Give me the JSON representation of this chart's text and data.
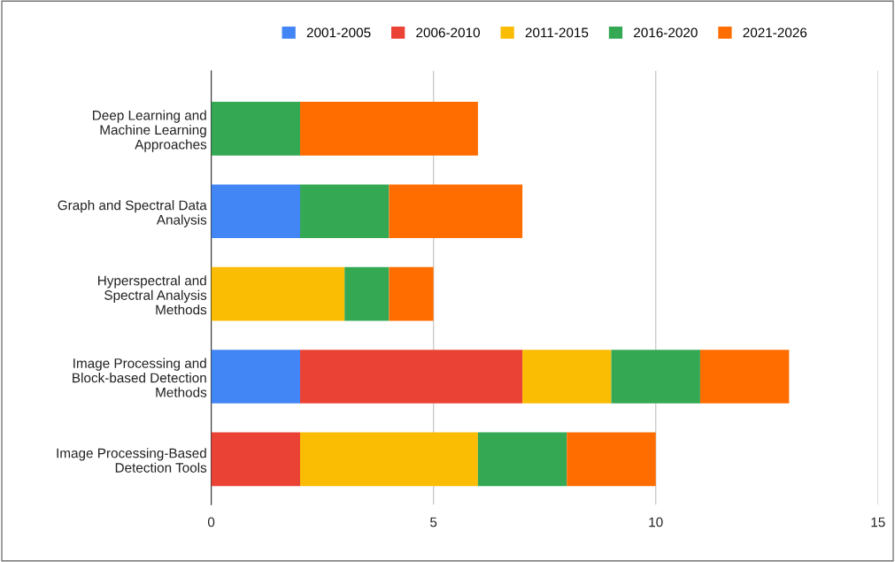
{
  "chart_data": {
    "type": "bar",
    "orientation": "horizontal",
    "stacked": true,
    "categories": [
      "Deep Learning and Machine Learning Approaches",
      "Graph and Spectral Data Analysis",
      "Hyperspectral and Spectral Analysis Methods",
      "Image Processing and Block-based Detection Methods",
      "Image Processing-Based Detection Tools"
    ],
    "series": [
      {
        "name": "2001-2005",
        "color": "#4285f4",
        "values": [
          0,
          2,
          0,
          2,
          0
        ]
      },
      {
        "name": "2006-2010",
        "color": "#ea4335",
        "values": [
          0,
          0,
          0,
          5,
          2
        ]
      },
      {
        "name": "2011-2015",
        "color": "#fbbc04",
        "values": [
          0,
          0,
          3,
          2,
          4
        ]
      },
      {
        "name": "2016-2020",
        "color": "#34a853",
        "values": [
          2,
          2,
          1,
          2,
          2
        ]
      },
      {
        "name": "2021-2026",
        "color": "#ff6d01",
        "values": [
          4,
          3,
          1,
          2,
          2
        ]
      }
    ],
    "xlim": [
      0,
      15
    ],
    "xticks": [
      0,
      5,
      10,
      15
    ],
    "grid": "x",
    "legend": "top"
  }
}
